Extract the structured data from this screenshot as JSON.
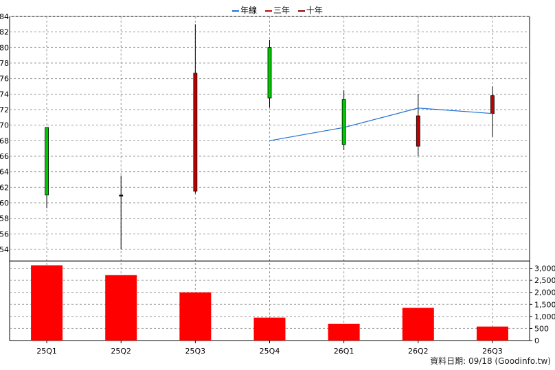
{
  "legend": [
    {
      "label": "年線",
      "color": "#1f6fd1"
    },
    {
      "label": "三年",
      "color": "#d20000"
    },
    {
      "label": "十年",
      "color": "#8b0000"
    }
  ],
  "footer": "資料日期: 09/18  (Goodinfo.tw)",
  "chart_data": {
    "type": "candlestick+bar",
    "categories": [
      "25Q1",
      "25Q2",
      "25Q3",
      "25Q4",
      "26Q1",
      "26Q2",
      "26Q3"
    ],
    "price_axis": {
      "ylim": [
        52.5,
        84
      ],
      "ticks": [
        54,
        56,
        58,
        60,
        62,
        64,
        66,
        68,
        70,
        72,
        74,
        76,
        78,
        80,
        82,
        84
      ]
    },
    "candles": [
      {
        "open": 61.0,
        "close": 69.7,
        "high": 69.7,
        "low": 59.3,
        "color": "#00c800"
      },
      {
        "open": 61.0,
        "close": 61.0,
        "high": 63.5,
        "low": 54.0,
        "color": "#000000"
      },
      {
        "open": 61.5,
        "close": 76.7,
        "high": 83.0,
        "low": 61.2,
        "color": "#c00000"
      },
      {
        "open": 73.5,
        "close": 80.0,
        "high": 81.0,
        "low": 72.3,
        "color": "#00c800"
      },
      {
        "open": 67.5,
        "close": 73.3,
        "high": 74.5,
        "low": 66.8,
        "color": "#00c800"
      },
      {
        "open": 67.3,
        "close": 71.2,
        "high": 74.0,
        "low": 66.0,
        "color": "#c00000"
      },
      {
        "open": 71.5,
        "close": 73.8,
        "high": 75.0,
        "low": 68.5,
        "color": "#c00000"
      }
    ],
    "annual_line": {
      "name": "年線",
      "start_index": 3,
      "values": [
        68.0,
        69.7,
        72.2,
        71.5
      ]
    },
    "volume_axis": {
      "ylim": [
        0,
        3300
      ],
      "ticks": [
        0,
        500,
        1000,
        1500,
        2000,
        2500,
        3000
      ],
      "tick_labels": [
        "0",
        "500",
        "1,000",
        "1,500",
        "2,000",
        "2,500",
        "3,000"
      ]
    },
    "volume": [
      3120,
      2720,
      2000,
      950,
      690,
      1360,
      580
    ],
    "grid": true
  }
}
